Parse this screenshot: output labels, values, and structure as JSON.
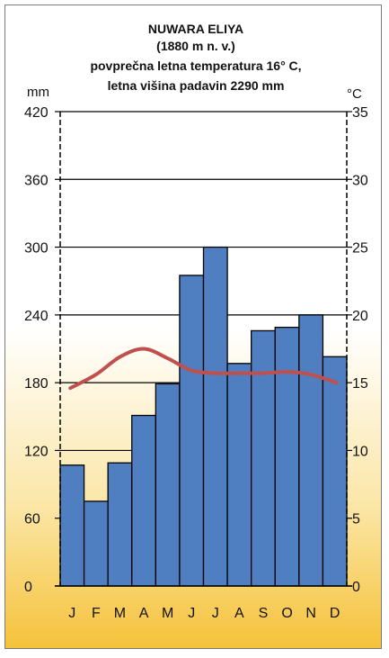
{
  "chart_data": {
    "type": "bar",
    "title_lines": [
      "NUWARA ELIYA",
      "(1880 m n. v.)",
      "povprečna letna temperatura 16° C,",
      "letna višina padavin 2290 mm"
    ],
    "categories": [
      "J",
      "F",
      "M",
      "A",
      "M",
      "J",
      "J",
      "A",
      "S",
      "O",
      "N",
      "D"
    ],
    "series": [
      {
        "values": [
          107,
          75,
          109,
          151,
          179,
          275,
          300,
          197,
          226,
          229,
          240,
          203
        ],
        "color": "#4f7fc0",
        "axis": "left"
      },
      {
        "type": "line",
        "values": [
          14.6,
          15.6,
          16.9,
          17.5,
          16.8,
          15.9,
          15.7,
          15.7,
          15.7,
          15.8,
          15.6,
          15.0
        ],
        "color": "#c0504d",
        "axis": "right"
      }
    ],
    "ylabel_left": "mm",
    "ylabel_right": "°C",
    "ylim_left": [
      0,
      420
    ],
    "ylim_right": [
      0,
      35
    ],
    "yticks_left": [
      "420",
      "360",
      "300",
      "240",
      "180",
      "120",
      "60",
      "0"
    ],
    "yticks_right": [
      "35",
      "30",
      "25",
      "20",
      "15",
      "10",
      "5",
      "0"
    ],
    "grid": true,
    "background": {
      "top": "#ffffff",
      "bottom": "#f5c23a"
    }
  }
}
